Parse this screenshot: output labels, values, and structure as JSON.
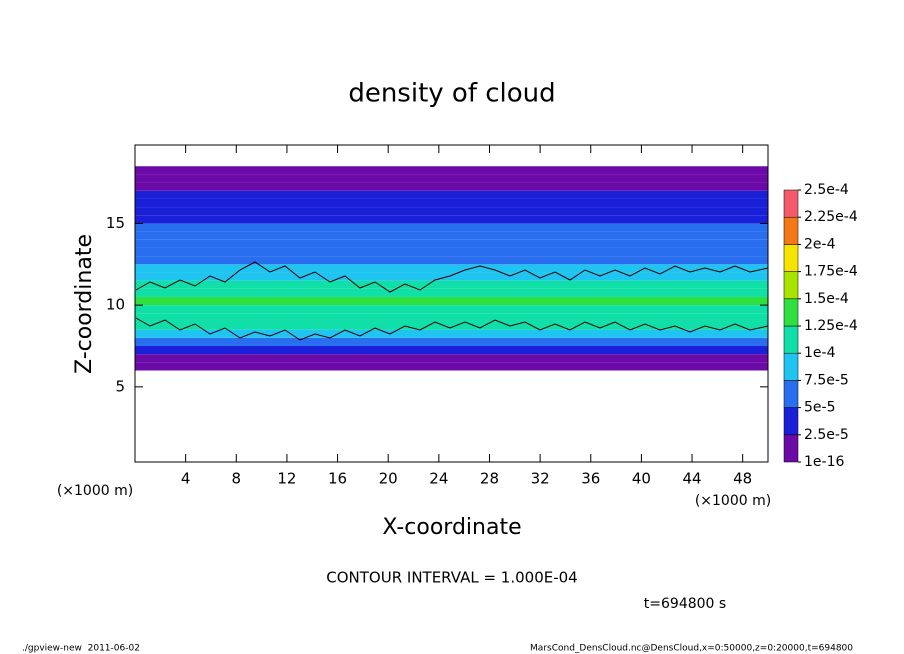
{
  "chart_data": {
    "type": "contour",
    "title": "density of cloud",
    "x_label": "X-coordinate",
    "y_label": "Z-coordinate",
    "x_unit": "(×1000 m)",
    "y_unit": "(×1000 m)",
    "contour_note": "CONTOUR INTERVAL = 1.000E-04",
    "time_label": "t=694800 s",
    "footer_left": "./gpview-new  2011-06-02",
    "footer_right": "MarsCond_DensCloud.nc@DensCloud,x=0:50000,z=0:20000,t=694800",
    "xlim": [
      0,
      50
    ],
    "xticks": [
      4,
      8,
      12,
      16,
      20,
      24,
      28,
      32,
      36,
      40,
      44,
      48
    ],
    "ylim": [
      0.4,
      19.8
    ],
    "yticks": [
      5,
      10,
      15
    ],
    "z": [
      6.25,
      6.75,
      7.25,
      7.75,
      8.25,
      8.75,
      9.25,
      9.75,
      10.25,
      10.75,
      11.25,
      11.75,
      12.25,
      12.75,
      13.25,
      13.75,
      14.25,
      14.75,
      15.25,
      15.75,
      16.25,
      16.75,
      17.25,
      17.75,
      18.25
    ],
    "values": [
      1e-05,
      1.5e-05,
      3e-05,
      6e-05,
      8.5e-05,
      0.000105,
      0.00011,
      0.00012,
      0.00013,
      0.000115,
      0.000105,
      9e-05,
      8e-05,
      7e-05,
      6.5e-05,
      6e-05,
      5.5e-05,
      5e-05,
      4.5e-05,
      4e-05,
      3.5e-05,
      3e-05,
      2e-05,
      1e-05,
      5e-06
    ],
    "levels": [
      {
        "value": 1e-16,
        "label": "1e-16"
      },
      {
        "value": 2.5e-05,
        "label": "2.5e-5"
      },
      {
        "value": 5e-05,
        "label": "5e-5"
      },
      {
        "value": 7.5e-05,
        "label": "7.5e-5"
      },
      {
        "value": 0.0001,
        "label": "1e-4"
      },
      {
        "value": 0.000125,
        "label": "1.25e-4"
      },
      {
        "value": 0.00015,
        "label": "1.5e-4"
      },
      {
        "value": 0.000175,
        "label": "1.75e-4"
      },
      {
        "value": 0.0002,
        "label": "2e-4"
      },
      {
        "value": 0.000225,
        "label": "2.25e-4"
      },
      {
        "value": 0.00025,
        "label": "2.5e-4"
      }
    ],
    "colors": [
      "#6c0aa8",
      "#1a20d8",
      "#2a6ef0",
      "#20c4f0",
      "#10e0a8",
      "#30e040",
      "#a8e400",
      "#f4e400",
      "#f47818",
      "#f45a6a"
    ]
  }
}
